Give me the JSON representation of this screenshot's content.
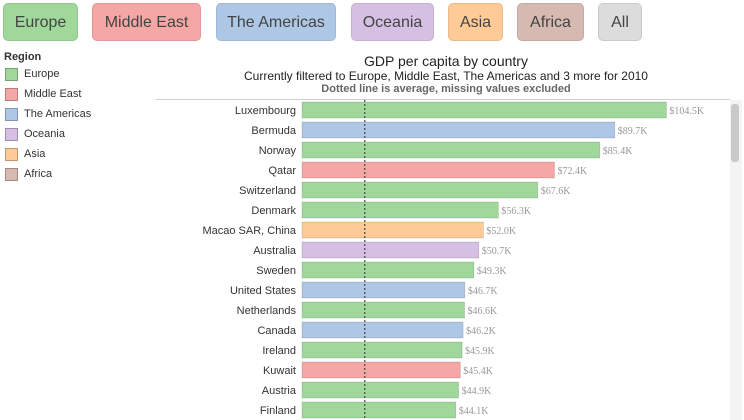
{
  "filters": [
    {
      "label": "Europe",
      "color": "#a0d89b"
    },
    {
      "label": "Middle East",
      "color": "#f4a7a5"
    },
    {
      "label": "The Americas",
      "color": "#adc7e5"
    },
    {
      "label": "Oceania",
      "color": "#d5bfe2"
    },
    {
      "label": "Asia",
      "color": "#fecb96"
    },
    {
      "label": "Africa",
      "color": "#d6b9b1"
    },
    {
      "label": "All",
      "color": "#dcdcdc"
    }
  ],
  "legend": {
    "title": "Region",
    "items": [
      {
        "label": "Europe",
        "color": "#a0d89b"
      },
      {
        "label": "Middle East",
        "color": "#f4a7a5"
      },
      {
        "label": "The Americas",
        "color": "#adc7e5"
      },
      {
        "label": "Oceania",
        "color": "#d5bfe2"
      },
      {
        "label": "Asia",
        "color": "#fecb96"
      },
      {
        "label": "Africa",
        "color": "#d6b9b1"
      }
    ]
  },
  "chart_data": {
    "type": "bar",
    "orientation": "horizontal",
    "title": "GDP per capita by country",
    "subtitle": "Currently filtered to Europe, Middle East, The Americas and 3 more for 2010",
    "note": "Dotted line is average, missing values excluded",
    "average": 18000,
    "xlim": [
      0,
      115000
    ],
    "bars": [
      {
        "country": "Luxembourg",
        "region": "Europe",
        "value": 104500,
        "label": "$104.5K"
      },
      {
        "country": "Bermuda",
        "region": "The Americas",
        "value": 89700,
        "label": "$89.7K"
      },
      {
        "country": "Norway",
        "region": "Europe",
        "value": 85400,
        "label": "$85.4K"
      },
      {
        "country": "Qatar",
        "region": "Middle East",
        "value": 72400,
        "label": "$72.4K"
      },
      {
        "country": "Switzerland",
        "region": "Europe",
        "value": 67600,
        "label": "$67.6K"
      },
      {
        "country": "Denmark",
        "region": "Europe",
        "value": 56300,
        "label": "$56.3K"
      },
      {
        "country": "Macao SAR, China",
        "region": "Asia",
        "value": 52000,
        "label": "$52.0K"
      },
      {
        "country": "Australia",
        "region": "Oceania",
        "value": 50700,
        "label": "$50.7K"
      },
      {
        "country": "Sweden",
        "region": "Europe",
        "value": 49300,
        "label": "$49.3K"
      },
      {
        "country": "United States",
        "region": "The Americas",
        "value": 46700,
        "label": "$46.7K"
      },
      {
        "country": "Netherlands",
        "region": "Europe",
        "value": 46600,
        "label": "$46.6K"
      },
      {
        "country": "Canada",
        "region": "The Americas",
        "value": 46200,
        "label": "$46.2K"
      },
      {
        "country": "Ireland",
        "region": "Europe",
        "value": 45900,
        "label": "$45.9K"
      },
      {
        "country": "Kuwait",
        "region": "Middle East",
        "value": 45400,
        "label": "$45.4K"
      },
      {
        "country": "Austria",
        "region": "Europe",
        "value": 44900,
        "label": "$44.9K"
      },
      {
        "country": "Finland",
        "region": "Europe",
        "value": 44100,
        "label": "$44.1K"
      }
    ]
  }
}
